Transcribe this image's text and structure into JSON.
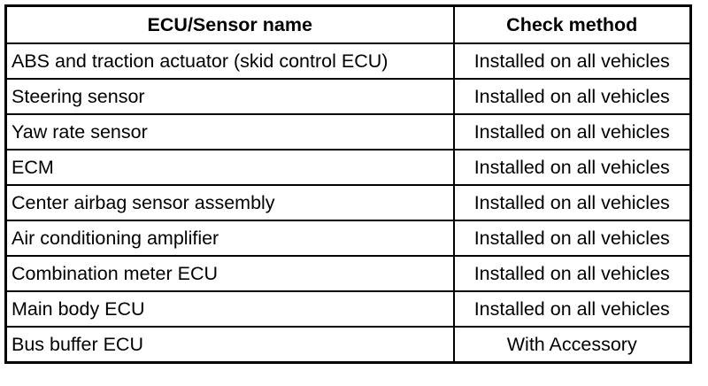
{
  "table": {
    "headers": [
      "ECU/Sensor name",
      "Check method"
    ],
    "rows": [
      {
        "name": "ABS and traction actuator (skid control ECU)",
        "method": "Installed on all vehicles"
      },
      {
        "name": "Steering sensor",
        "method": "Installed on all vehicles"
      },
      {
        "name": "Yaw rate sensor",
        "method": "Installed on all vehicles"
      },
      {
        "name": "ECM",
        "method": "Installed on all vehicles"
      },
      {
        "name": "Center airbag sensor assembly",
        "method": "Installed on all vehicles"
      },
      {
        "name": "Air conditioning amplifier",
        "method": "Installed on all vehicles"
      },
      {
        "name": "Combination meter ECU",
        "method": "Installed on all vehicles"
      },
      {
        "name": "Main body ECU",
        "method": "Installed on all vehicles"
      },
      {
        "name": "Bus buffer ECU",
        "method": "With Accessory"
      }
    ]
  }
}
